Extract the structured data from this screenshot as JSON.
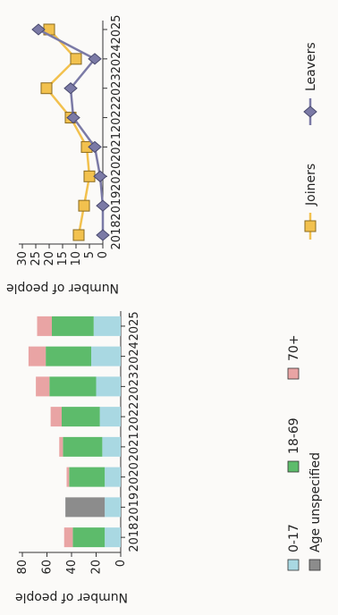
{
  "chart_data": [
    {
      "type": "bar",
      "stacked": true,
      "title": "",
      "ylabel": "Number of people",
      "xlabel": "",
      "ylim": [
        0,
        80
      ],
      "yticks": [
        0,
        20,
        40,
        60,
        80
      ],
      "grid": false,
      "legend": "bottom",
      "categories": [
        "2018",
        "2019",
        "2020",
        "2021",
        "2022",
        "2023",
        "2024",
        "2025"
      ],
      "series": [
        {
          "name": "0-17",
          "color": "#a9d8e2",
          "values": [
            13,
            13,
            13,
            15,
            17,
            20,
            24,
            22
          ]
        },
        {
          "name": "Age unspecified",
          "color": "#8c8c8c",
          "values": [
            0,
            32,
            0,
            0,
            0,
            0,
            0,
            0
          ]
        },
        {
          "name": "18-69",
          "color": "#5dbb6b",
          "values": [
            26,
            0,
            29,
            32,
            31,
            38,
            37,
            34
          ]
        },
        {
          "name": "70+",
          "color": "#e9a4a4",
          "values": [
            7,
            0,
            2,
            3,
            9,
            11,
            14,
            12
          ]
        }
      ]
    },
    {
      "type": "line",
      "title": "",
      "ylabel": "Number of people",
      "xlabel": "",
      "ylim": [
        0,
        30
      ],
      "yticks": [
        0,
        5,
        10,
        15,
        20,
        25,
        30
      ],
      "grid": false,
      "legend": "bottom",
      "x": [
        "2018",
        "2019",
        "2020",
        "2021",
        "2022",
        "2023",
        "2024",
        "2025"
      ],
      "series": [
        {
          "name": "Joiners",
          "color": "#f2c14e",
          "marker": "square",
          "values": [
            9,
            7,
            5,
            6,
            12,
            21,
            10,
            20
          ]
        },
        {
          "name": "Leavers",
          "color": "#7b7aa6",
          "marker": "diamond",
          "values": [
            0,
            0,
            1,
            3,
            11,
            12,
            3,
            24
          ]
        }
      ]
    }
  ]
}
